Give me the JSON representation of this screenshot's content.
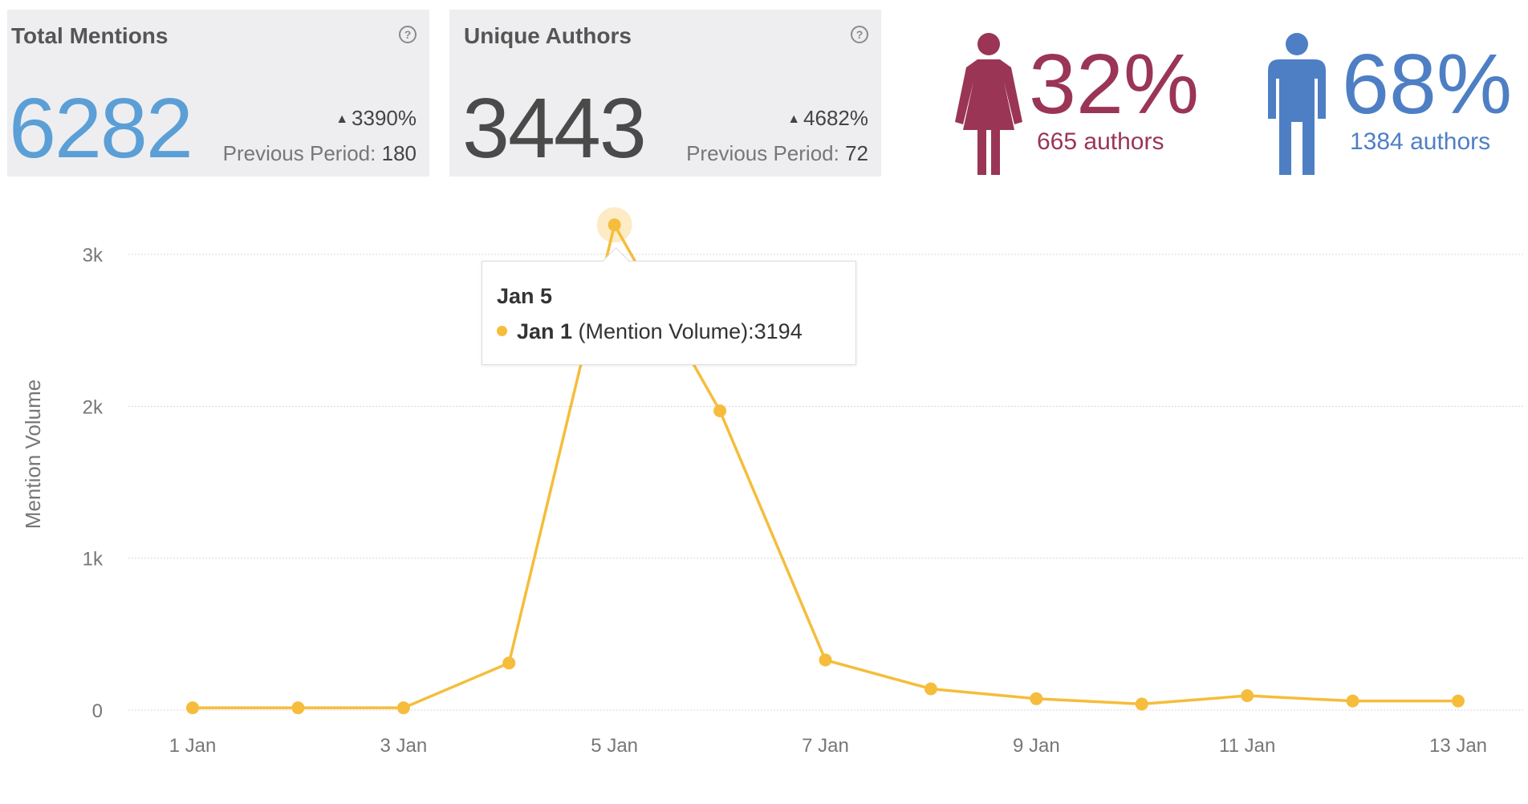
{
  "cards": {
    "mentions": {
      "title": "Total Mentions",
      "value": "6282",
      "change": "3390%",
      "prev_label": "Previous Period:",
      "prev_value": "180",
      "color": "#5b9fd6"
    },
    "authors": {
      "title": "Unique Authors",
      "value": "3443",
      "change": "4682%",
      "prev_label": "Previous Period:",
      "prev_value": "72",
      "color": "#4a4a4a"
    }
  },
  "gender": {
    "female": {
      "percent": "32%",
      "authors": "665 authors",
      "color": "#9a3556",
      "icon": "female-person-icon"
    },
    "male": {
      "percent": "68%",
      "authors": "1384 authors",
      "color": "#4e7fc4",
      "icon": "male-person-icon"
    }
  },
  "tooltip": {
    "title": "Jan 5",
    "series": "Jan 1",
    "rest": " (Mention Volume):3194"
  },
  "chart_data": {
    "type": "line",
    "ylabel": "Mention Volume",
    "xlabel": "",
    "ylim": [
      0,
      3000
    ],
    "yticks": [
      0,
      1000,
      2000,
      3000
    ],
    "ytick_labels": [
      "0",
      "1k",
      "2k",
      "3k"
    ],
    "x": [
      "1 Jan",
      "2 Jan",
      "3 Jan",
      "4 Jan",
      "5 Jan",
      "6 Jan",
      "7 Jan",
      "8 Jan",
      "9 Jan",
      "10 Jan",
      "11 Jan",
      "12 Jan",
      "13 Jan"
    ],
    "xtick_labels": [
      "1 Jan",
      "3 Jan",
      "5 Jan",
      "7 Jan",
      "9 Jan",
      "11 Jan",
      "13 Jan"
    ],
    "series": [
      {
        "values": [
          15,
          15,
          15,
          310,
          3194,
          1970,
          330,
          140,
          75,
          40,
          95,
          60,
          60
        ],
        "color": "#f5bd3b"
      }
    ],
    "highlight_index": 4,
    "grid": true
  }
}
